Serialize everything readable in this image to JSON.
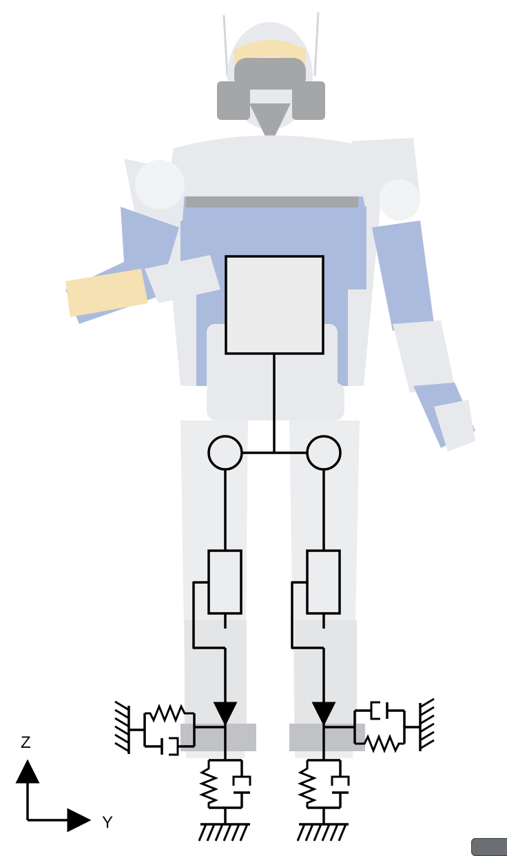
{
  "figure": {
    "subject": "humanoid-robot-with-leg-compliance-model",
    "axes": {
      "vertical_label": "Z",
      "horizontal_label": "Y"
    },
    "colors": {
      "robot_blue": "#3a5fb0",
      "robot_silver": "#c8ccd2",
      "robot_yellow": "#e8b84a",
      "robot_dark": "#2a2d33",
      "trunk_fill": "#ececec",
      "line": "#000000"
    }
  }
}
